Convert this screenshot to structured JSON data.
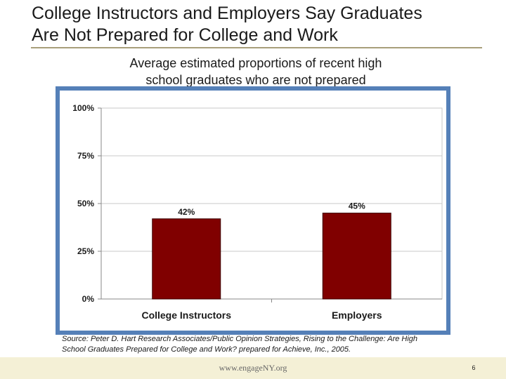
{
  "slide": {
    "title_line1": "College Instructors and Employers Say Graduates",
    "title_line2": "Are Not Prepared for College and Work",
    "subtitle_line1": "Average estimated proportions of recent high",
    "subtitle_line2": "school graduates who are not prepared",
    "source_line1": "Source: Peter D. Hart Research Associates/Public Opinion Strategies, Rising to the Challenge: Are High",
    "source_line2": "School Graduates Prepared for College and Work? prepared for Achieve, Inc., 2005.",
    "footer_url": "www.engageNY.org",
    "page_number": "6"
  },
  "chart_data": {
    "type": "bar",
    "categories": [
      "College Instructors",
      "Employers"
    ],
    "values": [
      42,
      45
    ],
    "data_labels": [
      "42%",
      "45%"
    ],
    "yticks": [
      0,
      25,
      50,
      75,
      100
    ],
    "ytick_labels": [
      "0%",
      "25%",
      "50%",
      "75%",
      "100%"
    ],
    "ylim": [
      0,
      100
    ],
    "grid": true,
    "bar_color": "#800000",
    "frame_color": "#5580b8"
  }
}
